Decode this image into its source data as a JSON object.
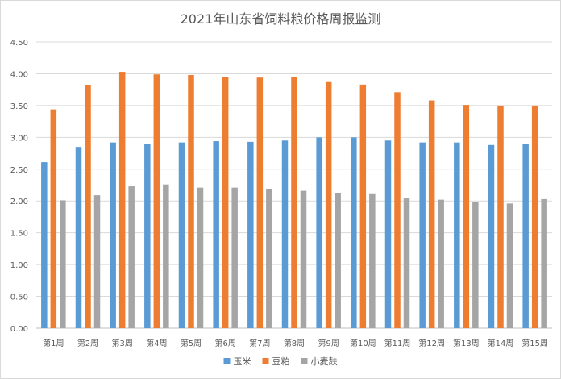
{
  "chart_data": {
    "type": "bar",
    "title": "2021年山东省饲料粮价格周报监测",
    "xlabel": "",
    "ylabel": "",
    "ylim": [
      0,
      4.5
    ],
    "yticks": [
      "0.00",
      "0.50",
      "1.00",
      "1.50",
      "2.00",
      "2.50",
      "3.00",
      "3.50",
      "4.00",
      "4.50"
    ],
    "grid": true,
    "legend_position": "bottom",
    "categories": [
      "第1周",
      "第2周",
      "第3周",
      "第4周",
      "第5周",
      "第6周",
      "第7周",
      "第8周",
      "第9周",
      "第10周",
      "第11周",
      "第12周",
      "第13周",
      "第14周",
      "第15周"
    ],
    "series": [
      {
        "name": "玉米",
        "color": "#5B9BD5",
        "values": [
          2.61,
          2.85,
          2.92,
          2.9,
          2.92,
          2.94,
          2.93,
          2.95,
          3.0,
          3.0,
          2.95,
          2.92,
          2.92,
          2.88,
          2.89
        ]
      },
      {
        "name": "豆粕",
        "color": "#ED7D31",
        "values": [
          3.44,
          3.82,
          4.03,
          3.99,
          3.98,
          3.95,
          3.94,
          3.95,
          3.87,
          3.83,
          3.71,
          3.58,
          3.51,
          3.5,
          3.5
        ]
      },
      {
        "name": "小麦麸",
        "color": "#A5A5A5",
        "values": [
          2.01,
          2.09,
          2.23,
          2.26,
          2.21,
          2.21,
          2.18,
          2.16,
          2.13,
          2.12,
          2.04,
          2.02,
          1.98,
          1.96,
          2.03
        ]
      }
    ]
  }
}
